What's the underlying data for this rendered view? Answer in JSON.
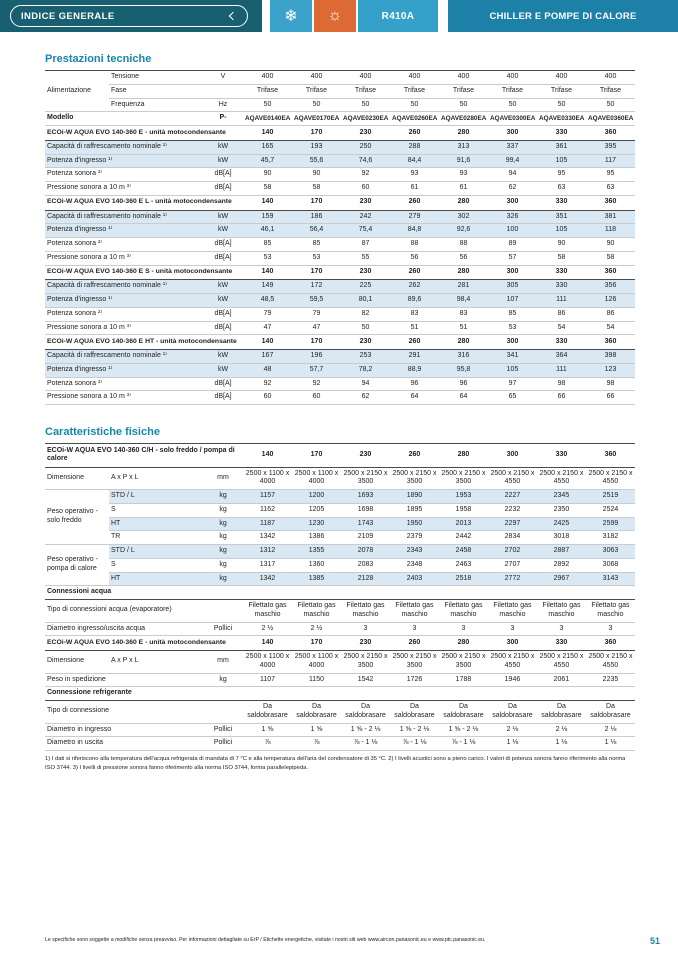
{
  "header": {
    "index_button_label": "INDICE GENERALE",
    "refrigerant_badge": "R410A",
    "page_title": "CHILLER E POMPE DI CALORE",
    "snowflake_icon": "❄",
    "sun_icon": "☼",
    "colors": {
      "dark_teal": "#175f71",
      "light_blue_tile": "#3ba3cb",
      "orange_tile": "#dd6a35",
      "right_blue": "#1d80a6",
      "section_title": "#1787ad",
      "row_shade": "#d9e8f2"
    }
  },
  "section1_title": "Prestazioni tecniche",
  "section2_title": "Caratteristiche fisiche",
  "tables": {
    "prestazioni": {
      "rows": [
        {
          "kind": "group",
          "label": "Alimentazione",
          "rows": [
            {
              "sub": "Tensione",
              "unit": "V",
              "values": [
                "400",
                "400",
                "400",
                "400",
                "400",
                "400",
                "400",
                "400"
              ]
            },
            {
              "sub": "Fase",
              "unit": "",
              "values": [
                "Trifase",
                "Trifase",
                "Trifase",
                "Trifase",
                "Trifase",
                "Trifase",
                "Trifase",
                "Trifase"
              ]
            },
            {
              "sub": "Frequenza",
              "unit": "Hz",
              "values": [
                "50",
                "50",
                "50",
                "50",
                "50",
                "50",
                "50",
                "50"
              ]
            }
          ]
        },
        {
          "kind": "row",
          "label": "Modello",
          "unit": "P-",
          "bold": true,
          "small": true,
          "dark": true,
          "values": [
            "AQAVE0140EA",
            "AQAVE0170EA",
            "AQAVE0230EA",
            "AQAVE0260EA",
            "AQAVE0280EA",
            "AQAVE0300EA",
            "AQAVE0330EA",
            "AQAVE0360EA"
          ]
        },
        {
          "kind": "blockhead",
          "label": "ECOi-W AQUA EVO 140-360 E - unità motocondensante",
          "values": [
            "140",
            "170",
            "230",
            "260",
            "280",
            "300",
            "330",
            "360"
          ]
        },
        {
          "kind": "row",
          "label": "Capacità di raffrescamento nominale ¹⁾",
          "unit": "kW",
          "shade": true,
          "values": [
            "165",
            "193",
            "250",
            "288",
            "313",
            "337",
            "361",
            "395"
          ]
        },
        {
          "kind": "row",
          "label": "Potenza d'ingresso ¹⁾",
          "unit": "kW",
          "shade": true,
          "values": [
            "45,7",
            "55,6",
            "74,6",
            "84,4",
            "91,6",
            "99,4",
            "105",
            "117"
          ]
        },
        {
          "kind": "row",
          "label": "Potenza sonora ²⁾",
          "unit": "dB[A]",
          "values": [
            "90",
            "90",
            "92",
            "93",
            "93",
            "94",
            "95",
            "95"
          ]
        },
        {
          "kind": "row",
          "label": "Pressione sonora a 10 m ³⁾",
          "unit": "dB[A]",
          "values": [
            "58",
            "58",
            "60",
            "61",
            "61",
            "62",
            "63",
            "63"
          ]
        },
        {
          "kind": "blockhead",
          "label": "ECOi-W AQUA EVO 140-360 E L - unità motocondensante",
          "values": [
            "140",
            "170",
            "230",
            "260",
            "280",
            "300",
            "330",
            "360"
          ]
        },
        {
          "kind": "row",
          "label": "Capacità di raffrescamento nominale ¹⁾",
          "unit": "kW",
          "shade": true,
          "values": [
            "159",
            "186",
            "242",
            "279",
            "302",
            "326",
            "351",
            "381"
          ]
        },
        {
          "kind": "row",
          "label": "Potenza d'ingresso ¹⁾",
          "unit": "kW",
          "shade": true,
          "values": [
            "46,1",
            "56,4",
            "75,4",
            "84,8",
            "92,6",
            "100",
            "105",
            "118"
          ]
        },
        {
          "kind": "row",
          "label": "Potenza sonora ²⁾",
          "unit": "dB[A]",
          "values": [
            "85",
            "85",
            "87",
            "88",
            "88",
            "89",
            "90",
            "90"
          ]
        },
        {
          "kind": "row",
          "label": "Pressione sonora a 10 m ³⁾",
          "unit": "dB[A]",
          "values": [
            "53",
            "53",
            "55",
            "56",
            "56",
            "57",
            "58",
            "58"
          ]
        },
        {
          "kind": "blockhead",
          "label": "ECOi-W AQUA EVO 140-360 E S - unità motocondensante",
          "values": [
            "140",
            "170",
            "230",
            "260",
            "280",
            "300",
            "330",
            "360"
          ]
        },
        {
          "kind": "row",
          "label": "Capacità di raffrescamento nominale ¹⁾",
          "unit": "kW",
          "shade": true,
          "values": [
            "149",
            "172",
            "225",
            "262",
            "281",
            "305",
            "330",
            "356"
          ]
        },
        {
          "kind": "row",
          "label": "Potenza d'ingresso ¹⁾",
          "unit": "kW",
          "shade": true,
          "values": [
            "48,5",
            "59,5",
            "80,1",
            "89,6",
            "98,4",
            "107",
            "111",
            "126"
          ]
        },
        {
          "kind": "row",
          "label": "Potenza sonora ²⁾",
          "unit": "dB[A]",
          "values": [
            "79",
            "79",
            "82",
            "83",
            "83",
            "85",
            "86",
            "86"
          ]
        },
        {
          "kind": "row",
          "label": "Pressione sonora a 10 m ³⁾",
          "unit": "dB[A]",
          "values": [
            "47",
            "47",
            "50",
            "51",
            "51",
            "53",
            "54",
            "54"
          ]
        },
        {
          "kind": "blockhead",
          "label": "ECOi-W AQUA EVO 140-360 E HT - unità motocondensante",
          "values": [
            "140",
            "170",
            "230",
            "260",
            "280",
            "300",
            "330",
            "360"
          ]
        },
        {
          "kind": "row",
          "label": "Capacità di raffrescamento nominale ¹⁾",
          "unit": "kW",
          "shade": true,
          "values": [
            "167",
            "196",
            "253",
            "291",
            "316",
            "341",
            "364",
            "398"
          ]
        },
        {
          "kind": "row",
          "label": "Potenza d'ingresso ¹⁾",
          "unit": "kW",
          "shade": true,
          "values": [
            "48",
            "57,7",
            "78,2",
            "88,9",
            "95,8",
            "105",
            "111",
            "123"
          ]
        },
        {
          "kind": "row",
          "label": "Potenza sonora ²⁾",
          "unit": "dB[A]",
          "values": [
            "92",
            "92",
            "94",
            "96",
            "96",
            "97",
            "98",
            "98"
          ]
        },
        {
          "kind": "row",
          "label": "Pressione sonora a 10 m ³⁾",
          "unit": "dB[A]",
          "values": [
            "60",
            "60",
            "62",
            "64",
            "64",
            "65",
            "66",
            "66"
          ]
        }
      ]
    },
    "caratteristiche": {
      "rows": [
        {
          "kind": "blockhead",
          "wrap": true,
          "label": "ECOi-W AQUA EVO 140-360 C/H - solo freddo / pompa di calore",
          "values": [
            "140",
            "170",
            "230",
            "260",
            "280",
            "300",
            "330",
            "360"
          ]
        },
        {
          "kind": "group",
          "label": "Dimensione",
          "rows": [
            {
              "sub": "A x P x L",
              "unit": "mm",
              "values": [
                "2500 x 1100 x 4000",
                "2500 x 1100 x 4000",
                "2500 x 2150 x 3500",
                "2500 x 2150 x 3500",
                "2500 x 2150 x 3500",
                "2500 x 2150 x 4550",
                "2500 x 2150 x 4550",
                "2500 x 2150 x 4550"
              ]
            }
          ]
        },
        {
          "kind": "group",
          "label": "Peso operativo - solo freddo",
          "rows": [
            {
              "sub": "STD / L",
              "unit": "kg",
              "shade": true,
              "values": [
                "1157",
                "1200",
                "1693",
                "1890",
                "1953",
                "2227",
                "2345",
                "2519"
              ]
            },
            {
              "sub": "S",
              "unit": "kg",
              "values": [
                "1162",
                "1205",
                "1698",
                "1895",
                "1958",
                "2232",
                "2350",
                "2524"
              ]
            },
            {
              "sub": "HT",
              "unit": "kg",
              "shade": true,
              "values": [
                "1187",
                "1230",
                "1743",
                "1950",
                "2013",
                "2297",
                "2425",
                "2599"
              ]
            },
            {
              "sub": "TR",
              "unit": "kg",
              "values": [
                "1342",
                "1386",
                "2109",
                "2379",
                "2442",
                "2834",
                "3018",
                "3182"
              ]
            }
          ]
        },
        {
          "kind": "group",
          "label": "Peso operativo - pompa di calore",
          "rows": [
            {
              "sub": "STD / L",
              "unit": "kg",
              "shade": true,
              "values": [
                "1312",
                "1355",
                "2078",
                "2343",
                "2458",
                "2702",
                "2887",
                "3063"
              ]
            },
            {
              "sub": "S",
              "unit": "kg",
              "values": [
                "1317",
                "1360",
                "2083",
                "2348",
                "2463",
                "2707",
                "2892",
                "3068"
              ]
            },
            {
              "sub": "HT",
              "unit": "kg",
              "shade": true,
              "values": [
                "1342",
                "1385",
                "2128",
                "2403",
                "2518",
                "2772",
                "2967",
                "3143"
              ]
            }
          ]
        },
        {
          "kind": "section",
          "label": "Connessioni acqua"
        },
        {
          "kind": "row",
          "label": "Tipo di connessioni acqua (evaporatore)",
          "unit": "",
          "values": [
            "Filettato gas maschio",
            "Filettato gas maschio",
            "Filettato gas maschio",
            "Filettato gas maschio",
            "Filettato gas maschio",
            "Filettato gas maschio",
            "Filettato gas maschio",
            "Filettato gas maschio"
          ]
        },
        {
          "kind": "row",
          "label": "Diametro ingresso/uscita acqua",
          "unit": "Pollici",
          "values": [
            "2 ½",
            "2 ½",
            "3",
            "3",
            "3",
            "3",
            "3",
            "3"
          ]
        },
        {
          "kind": "blockhead",
          "label": "ECOi-W AQUA EVO 140-360 E - unità motocondensante",
          "values": [
            "140",
            "170",
            "230",
            "260",
            "280",
            "300",
            "330",
            "360"
          ]
        },
        {
          "kind": "group",
          "label": "Dimensione",
          "rows": [
            {
              "sub": "A x P x L",
              "unit": "mm",
              "values": [
                "2500 x 1100 x 4000",
                "2500 x 1100 x 4000",
                "2500 x 2150 x 3500",
                "2500 x 2150 x 3500",
                "2500 x 2150 x 3500",
                "2500 x 2150 x 4550",
                "2500 x 2150 x 4550",
                "2500 x 2150 x 4550"
              ]
            }
          ]
        },
        {
          "kind": "row",
          "label": "Peso in spedizione",
          "unit": "kg",
          "values": [
            "1107",
            "1150",
            "1542",
            "1726",
            "1788",
            "1946",
            "2061",
            "2235"
          ]
        },
        {
          "kind": "section",
          "label": "Connessione refrigerante"
        },
        {
          "kind": "row",
          "label": "Tipo di connessione",
          "unit": "",
          "values": [
            "Da saldobrasare",
            "Da saldobrasare",
            "Da saldobrasare",
            "Da saldobrasare",
            "Da saldobrasare",
            "Da saldobrasare",
            "Da saldobrasare",
            "Da saldobrasare"
          ]
        },
        {
          "kind": "row",
          "label": "Diametro in ingresso",
          "unit": "Pollici",
          "values": [
            "1 ⅝",
            "1 ⅝",
            "1 ⅝ - 2 ⅛",
            "1 ⅝ - 2 ⅛",
            "1 ⅝ - 2 ⅛",
            "2 ⅛",
            "2 ⅛",
            "2 ⅛"
          ]
        },
        {
          "kind": "row",
          "label": "Diametro in uscita",
          "unit": "Pollici",
          "values": [
            "⅞",
            "⅞",
            "⅞ - 1 ⅛",
            "⅞ - 1 ⅛",
            "⅞ - 1 ⅛",
            "1 ⅛",
            "1 ⅛",
            "1 ⅛"
          ]
        }
      ]
    }
  },
  "footnote": "1) I dati si riferiscono alla temperatura dell'acqua refrigerata di mandata di 7 °C e alla temperatura dell'aria del condensatore di 35 °C. 2) I livelli acustici sono a pieno carico. I valori di potenza sonora fanno riferimento alla norma ISO 3744. 3) I livelli di pressione sonora fanno riferimento alla norma ISO 3744, forma parallelepipeda.",
  "footer": {
    "note": "Le specifiche sono soggette a modifiche senza preavviso. Per informazioni dettagliate su ErP / Etichette energetiche, visitate i nostri siti web www.aircon.panasonic.eu e www.ptc.panasonic.eu.",
    "page_number": "51"
  }
}
